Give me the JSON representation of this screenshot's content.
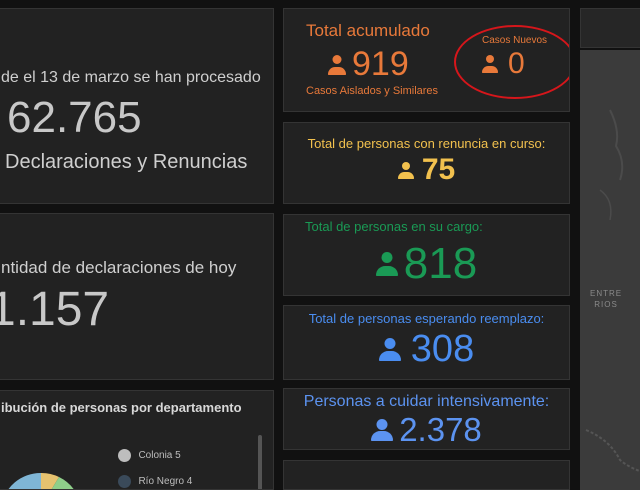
{
  "left": {
    "card1": {
      "line1": "de el 13 de marzo se han procesado",
      "number": "62.765",
      "line2": "Declaraciones y Renuncias"
    },
    "card2": {
      "title": "ntidad de declaraciones de hoy",
      "number": "1.157"
    },
    "card3": {
      "title": "ibución de personas por departamento",
      "legend": [
        {
          "label": "Colonia  5"
        },
        {
          "label": "Río Negro  4"
        }
      ]
    }
  },
  "tiles": {
    "acumulado": {
      "title": "Total acumulado",
      "value": "919",
      "subtitle": "Casos Aislados y Similares",
      "color": "#e8793a"
    },
    "nuevos": {
      "title": "Casos Nuevos",
      "value": "0",
      "color": "#e8793a",
      "highlight": "#d6161b"
    },
    "renuncia": {
      "title": "Total de personas con renuncia en curso:",
      "value": "75",
      "color": "#f2c14e"
    },
    "cargo": {
      "title": "Total de personas en su cargo:",
      "value": "818",
      "color": "#1a9a55"
    },
    "reemplazo": {
      "title": "Total de personas esperando reemplazo:",
      "value": "308",
      "color": "#4a8df0"
    },
    "intensivo": {
      "title": "Personas a cuidar intensivamente:",
      "value": "2.378",
      "color": "#5c93f0"
    }
  },
  "map": {
    "label_line1": "ENTRE",
    "label_line2": "RIOS"
  }
}
